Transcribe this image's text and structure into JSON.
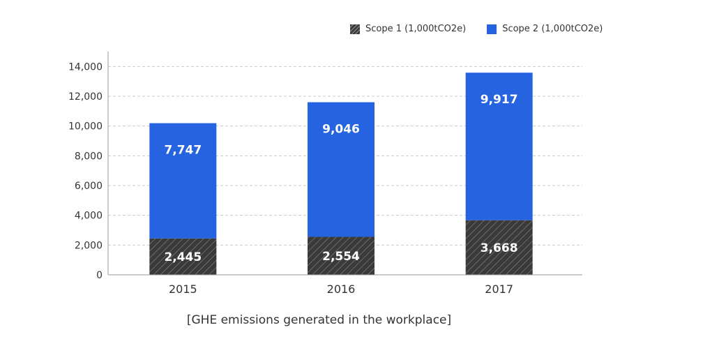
{
  "legend": {
    "scope1": "Scope 1 (1,000tCO2e)",
    "scope2": "Scope 2 (1,000tCO2e)"
  },
  "caption": "[GHE emissions generated in the workplace]",
  "colors": {
    "scope1": "#3a3a3a",
    "scope2": "#2563e0",
    "grid": "#cccccc",
    "axis": "#999999"
  },
  "chart_data": {
    "type": "bar",
    "stacked": true,
    "categories": [
      "2015",
      "2016",
      "2017"
    ],
    "series": [
      {
        "name": "Scope 1 (1,000tCO2e)",
        "values": [
          2445,
          2554,
          3668
        ],
        "labels": [
          "2,445",
          "2,554",
          "3,668"
        ]
      },
      {
        "name": "Scope 2 (1,000tCO2e)",
        "values": [
          7747,
          9046,
          9917
        ],
        "labels": [
          "7,747",
          "9,046",
          "9,917"
        ]
      }
    ],
    "yticks": [
      0,
      2000,
      4000,
      6000,
      8000,
      10000,
      12000,
      14000
    ],
    "ytick_labels": [
      "0",
      "2,000",
      "4,000",
      "6,000",
      "8,000",
      "10,000",
      "12,000",
      "14,000"
    ],
    "ylim": [
      0,
      15000
    ],
    "grid": true,
    "legend_position": "top-right"
  }
}
